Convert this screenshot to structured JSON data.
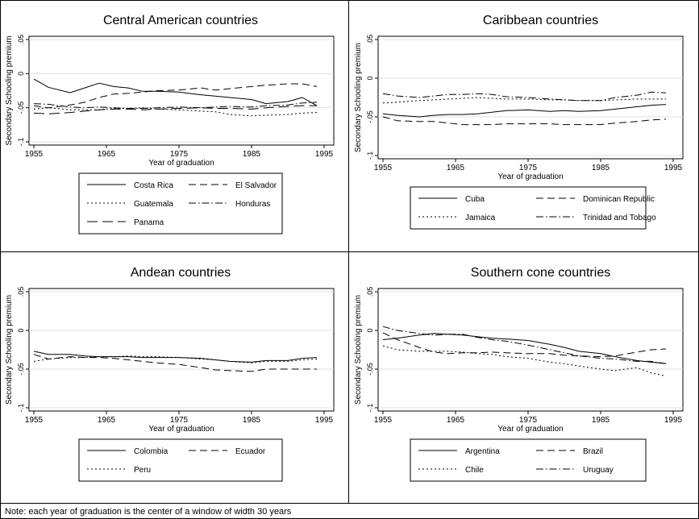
{
  "figure": {
    "note": "Note: each year of graduation is the center of a window of width 30 years"
  },
  "chart_data": [
    {
      "type": "line",
      "title": "Central American countries",
      "xlabel": "Year of graduation",
      "ylabel": "Secondary Schooling premium",
      "xlim": [
        1955,
        1995
      ],
      "ylim": [
        -0.1,
        0.05
      ],
      "xticks": [
        "1955",
        "1965",
        "1975",
        "1985",
        "1995"
      ],
      "yticks": [
        "-.1",
        "-.05",
        "0",
        ".05"
      ],
      "grid": "horizontal",
      "legend": "bottom",
      "x": [
        1955,
        1957,
        1960,
        1962,
        1964,
        1966,
        1968,
        1970,
        1972,
        1975,
        1978,
        1980,
        1982,
        1985,
        1987,
        1990,
        1992,
        1994
      ],
      "series": [
        {
          "name": "Costa Rica",
          "dash": "solid",
          "values": [
            -0.008,
            -0.02,
            -0.028,
            -0.021,
            -0.014,
            -0.019,
            -0.021,
            -0.026,
            -0.026,
            -0.027,
            -0.031,
            -0.033,
            -0.035,
            -0.038,
            -0.044,
            -0.041,
            -0.035,
            -0.047
          ]
        },
        {
          "name": "El Salvador",
          "dash": "long",
          "values": [
            -0.047,
            -0.05,
            -0.046,
            -0.042,
            -0.035,
            -0.03,
            -0.029,
            -0.027,
            -0.025,
            -0.024,
            -0.021,
            -0.024,
            -0.022,
            -0.019,
            -0.017,
            -0.015,
            -0.015,
            -0.019
          ]
        },
        {
          "name": "Guatemala",
          "dash": "dot",
          "values": [
            -0.052,
            -0.05,
            -0.053,
            -0.053,
            -0.053,
            -0.051,
            -0.051,
            -0.05,
            -0.052,
            -0.053,
            -0.055,
            -0.056,
            -0.06,
            -0.062,
            -0.061,
            -0.06,
            -0.058,
            -0.057
          ]
        },
        {
          "name": "Honduras",
          "dash": "dashdot",
          "values": [
            -0.044,
            -0.045,
            -0.049,
            -0.05,
            -0.049,
            -0.05,
            -0.051,
            -0.051,
            -0.05,
            -0.049,
            -0.05,
            -0.049,
            -0.048,
            -0.049,
            -0.047,
            -0.046,
            -0.043,
            -0.042
          ]
        },
        {
          "name": "Panama",
          "dash": "longgap",
          "values": [
            -0.058,
            -0.059,
            -0.057,
            -0.055,
            -0.053,
            -0.052,
            -0.052,
            -0.053,
            -0.052,
            -0.051,
            -0.05,
            -0.051,
            -0.051,
            -0.052,
            -0.05,
            -0.048,
            -0.047,
            -0.047
          ]
        }
      ]
    },
    {
      "type": "line",
      "title": "Caribbean countries",
      "xlabel": "Year of graduation",
      "ylabel": "Secondary Schooling premium",
      "xlim": [
        1955,
        1995
      ],
      "ylim": [
        -0.1,
        0.05
      ],
      "xticks": [
        "1955",
        "1965",
        "1975",
        "1985",
        "1995"
      ],
      "yticks": [
        "-.1",
        "-.05",
        "0",
        ".05"
      ],
      "grid": "horizontal",
      "legend": "bottom",
      "x": [
        1955,
        1957,
        1960,
        1962,
        1964,
        1966,
        1968,
        1970,
        1972,
        1975,
        1978,
        1980,
        1982,
        1985,
        1987,
        1990,
        1992,
        1994
      ],
      "series": [
        {
          "name": "Cuba",
          "dash": "solid",
          "values": [
            -0.046,
            -0.048,
            -0.05,
            -0.048,
            -0.047,
            -0.047,
            -0.046,
            -0.044,
            -0.042,
            -0.041,
            -0.043,
            -0.042,
            -0.043,
            -0.042,
            -0.04,
            -0.037,
            -0.035,
            -0.034
          ]
        },
        {
          "name": "Dominican Republic",
          "dash": "long",
          "values": [
            -0.05,
            -0.055,
            -0.056,
            -0.056,
            -0.058,
            -0.06,
            -0.06,
            -0.06,
            -0.059,
            -0.059,
            -0.059,
            -0.06,
            -0.06,
            -0.06,
            -0.058,
            -0.056,
            -0.054,
            -0.053
          ]
        },
        {
          "name": "Jamaica",
          "dash": "dot",
          "values": [
            -0.032,
            -0.031,
            -0.029,
            -0.028,
            -0.027,
            -0.026,
            -0.025,
            -0.026,
            -0.027,
            -0.027,
            -0.028,
            -0.028,
            -0.029,
            -0.029,
            -0.028,
            -0.027,
            -0.027,
            -0.027
          ]
        },
        {
          "name": "Trinidad and Tobago",
          "dash": "dashdot",
          "values": [
            -0.02,
            -0.023,
            -0.025,
            -0.023,
            -0.021,
            -0.021,
            -0.02,
            -0.021,
            -0.024,
            -0.025,
            -0.027,
            -0.028,
            -0.029,
            -0.029,
            -0.025,
            -0.022,
            -0.018,
            -0.019
          ]
        }
      ]
    },
    {
      "type": "line",
      "title": "Andean countries",
      "xlabel": "Year of graduation",
      "ylabel": "Secondary Schooling premium",
      "xlim": [
        1955,
        1995
      ],
      "ylim": [
        -0.1,
        0.05
      ],
      "xticks": [
        "1955",
        "1965",
        "1975",
        "1985",
        "1995"
      ],
      "yticks": [
        "-.1",
        "-.05",
        "0",
        ".05"
      ],
      "grid": "horizontal",
      "legend": "bottom",
      "x": [
        1955,
        1957,
        1960,
        1962,
        1964,
        1966,
        1968,
        1970,
        1972,
        1975,
        1978,
        1980,
        1982,
        1985,
        1987,
        1990,
        1992,
        1994
      ],
      "series": [
        {
          "name": "Colombia",
          "dash": "solid",
          "values": [
            -0.027,
            -0.031,
            -0.031,
            -0.033,
            -0.034,
            -0.034,
            -0.034,
            -0.035,
            -0.035,
            -0.035,
            -0.036,
            -0.038,
            -0.04,
            -0.041,
            -0.039,
            -0.039,
            -0.036,
            -0.035
          ]
        },
        {
          "name": "Ecuador",
          "dash": "long",
          "values": [
            -0.031,
            -0.037,
            -0.034,
            -0.035,
            -0.035,
            -0.036,
            -0.038,
            -0.04,
            -0.042,
            -0.044,
            -0.048,
            -0.051,
            -0.052,
            -0.053,
            -0.05,
            -0.05,
            -0.05,
            -0.05
          ]
        },
        {
          "name": "Peru",
          "dash": "dot",
          "values": [
            -0.04,
            -0.037,
            -0.035,
            -0.035,
            -0.034,
            -0.034,
            -0.033,
            -0.034,
            -0.034,
            -0.035,
            -0.037,
            -0.038,
            -0.04,
            -0.042,
            -0.04,
            -0.04,
            -0.038,
            -0.037
          ]
        }
      ]
    },
    {
      "type": "line",
      "title": "Southern cone countries",
      "xlabel": "Year of graduation",
      "ylabel": "Secondary Schooling premium",
      "xlim": [
        1955,
        1995
      ],
      "ylim": [
        -0.1,
        0.05
      ],
      "xticks": [
        "1955",
        "1965",
        "1975",
        "1985",
        "1995"
      ],
      "yticks": [
        "-.1",
        "-.05",
        "0",
        ".05"
      ],
      "grid": "horizontal",
      "legend": "bottom",
      "x": [
        1955,
        1957,
        1960,
        1962,
        1964,
        1966,
        1968,
        1970,
        1972,
        1975,
        1978,
        1980,
        1982,
        1985,
        1987,
        1990,
        1992,
        1994
      ],
      "series": [
        {
          "name": "Argentina",
          "dash": "solid",
          "values": [
            -0.012,
            -0.01,
            -0.006,
            -0.004,
            -0.005,
            -0.006,
            -0.008,
            -0.01,
            -0.011,
            -0.013,
            -0.018,
            -0.022,
            -0.027,
            -0.03,
            -0.034,
            -0.039,
            -0.041,
            -0.043
          ]
        },
        {
          "name": "Brazil",
          "dash": "long",
          "values": [
            -0.003,
            -0.012,
            -0.022,
            -0.028,
            -0.03,
            -0.029,
            -0.029,
            -0.028,
            -0.029,
            -0.03,
            -0.03,
            -0.032,
            -0.033,
            -0.034,
            -0.033,
            -0.028,
            -0.025,
            -0.024
          ]
        },
        {
          "name": "Chile",
          "dash": "dot",
          "values": [
            -0.02,
            -0.025,
            -0.027,
            -0.027,
            -0.027,
            -0.028,
            -0.03,
            -0.031,
            -0.034,
            -0.036,
            -0.041,
            -0.043,
            -0.046,
            -0.05,
            -0.052,
            -0.048,
            -0.055,
            -0.059
          ]
        },
        {
          "name": "Uruguay",
          "dash": "dashdot",
          "values": [
            0.005,
            0.0,
            -0.004,
            -0.006,
            -0.005,
            -0.005,
            -0.009,
            -0.012,
            -0.014,
            -0.019,
            -0.025,
            -0.029,
            -0.033,
            -0.036,
            -0.037,
            -0.04,
            -0.04,
            -0.043
          ]
        }
      ]
    }
  ]
}
